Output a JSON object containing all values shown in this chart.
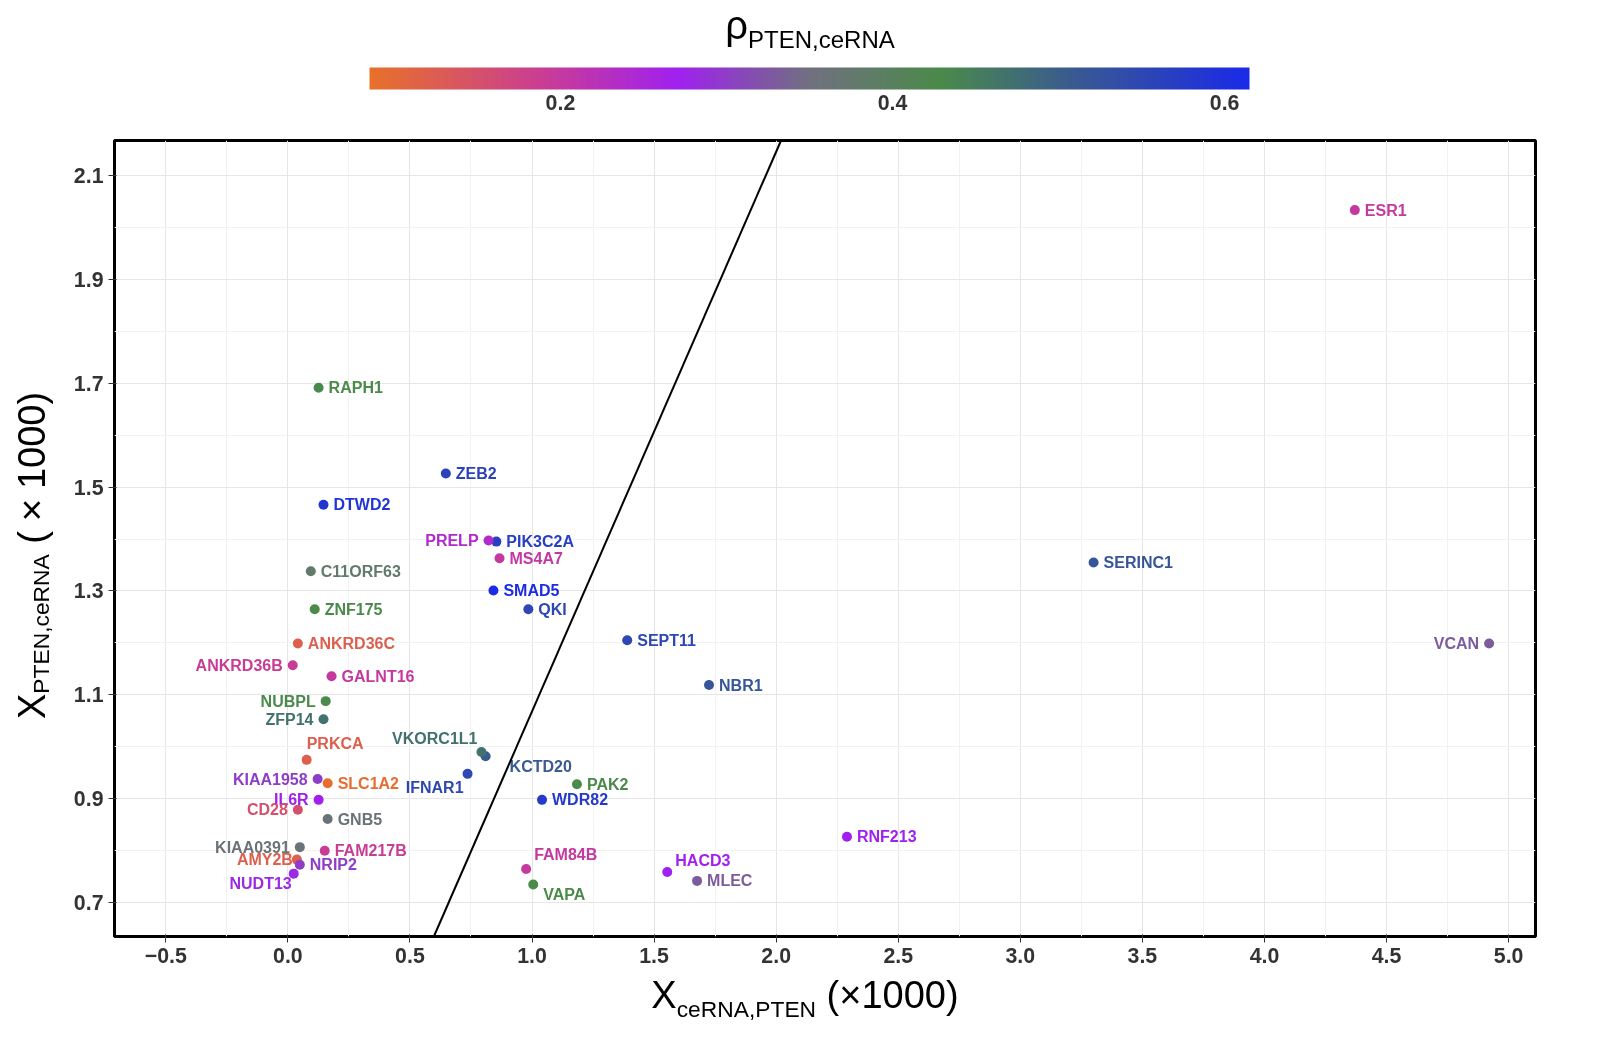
{
  "chart_data": {
    "type": "scatter",
    "xlabel": "X$_{ceRNA,PTEN}$ (×1000)",
    "ylabel": "X$_{PTEN,ceRNA}$ (×1000)",
    "clabel": "ρ$_{PTEN,ceRNA}$",
    "xlim": [
      -0.71,
      5.11
    ],
    "ylim": [
      0.635,
      2.167
    ],
    "xticks": [
      {
        "value": -0.5,
        "label": "−0.5"
      },
      {
        "value": 0,
        "label": "0.0"
      },
      0.5,
      {
        "value": 1,
        "label": "1.0"
      },
      1.5,
      {
        "value": 2,
        "label": "2.0"
      },
      2.5,
      {
        "value": 3,
        "label": "3.0"
      },
      3.5,
      {
        "value": 4,
        "label": "4.0"
      },
      4.5,
      {
        "value": 5,
        "label": "5.0"
      }
    ],
    "yticks": [
      0.7,
      0.9,
      1.1,
      1.3,
      1.5,
      1.7,
      1.9,
      2.1
    ],
    "clim": [
      0.085,
      0.615
    ],
    "cticks": [
      0.2,
      0.4,
      0.6
    ],
    "grid": true,
    "marker": "circle",
    "series": [
      {
        "x": [
          4.37,
          4.92,
          3.3,
          2.29,
          1.725,
          1.39,
          1.554,
          1.676,
          1.184,
          1.041,
          0.976,
          1.005,
          0.985,
          0.842,
          0.867,
          0.854,
          0.822,
          0.647,
          0.81,
          0.793,
          0.736,
          0.146,
          0.126,
          0.094,
          0.11,
          0.041,
          0.02,
          0.179,
          0.155,
          0.146,
          0.077,
          0.122,
          0.163,
          0.126,
          0.041,
          0.163,
          0.049,
          0.151,
          0.037,
          0.049,
          0.024
        ],
        "values": [
          2.033,
          1.199,
          1.355,
          0.827,
          1.119,
          1.205,
          0.759,
          0.742,
          0.928,
          0.898,
          0.765,
          0.735,
          1.265,
          1.301,
          1.363,
          1.395,
          1.397,
          1.526,
          0.982,
          0.99,
          0.948,
          1.466,
          1.691,
          1.338,
          1.265,
          1.199,
          1.157,
          1.136,
          1.088,
          1.053,
          0.975,
          0.938,
          0.93,
          0.898,
          0.879,
          0.861,
          0.807,
          0.8,
          0.783,
          0.773,
          0.756
        ],
        "cvalues": [
          0.2,
          0.33,
          0.52,
          0.27,
          0.52,
          0.55,
          0.27,
          0.33,
          0.43,
          0.58,
          0.2,
          0.43,
          0.55,
          0.61,
          0.2,
          0.57,
          0.24,
          0.56,
          0.51,
          0.47,
          0.55,
          0.59,
          0.43,
          0.38,
          0.43,
          0.12,
          0.19,
          0.2,
          0.43,
          0.47,
          0.12,
          0.3,
          0.09,
          0.27,
          0.15,
          0.36,
          0.36,
          0.19,
          0.12,
          0.3,
          0.28
        ],
        "colors": [
          "#c439a0",
          "#7c5c9c",
          "#375599",
          "#a020ef",
          "#375599",
          "#2e47b2",
          "#a020ef",
          "#7c5c9c",
          "#4a8a4a",
          "#253acb",
          "#c439a0",
          "#4a8a4a",
          "#2e47b2",
          "#1b2ce4",
          "#c439a0",
          "#283ec3",
          "#af2bce",
          "#2b43ba",
          "#3a5a91",
          "#42726e",
          "#2e47b2",
          "#2235d3",
          "#4a8a4a",
          "#627a6c",
          "#4a8a4a",
          "#dd5f4e",
          "#c83c95",
          "#c439a0",
          "#4a8a4a",
          "#42726e",
          "#dd5f4e",
          "#8e3ec6",
          "#e66e2f",
          "#a020ef",
          "#d4506c",
          "#6b7379",
          "#6b7379",
          "#c83c95",
          "#dd5f4e",
          "#8e3ec6",
          "#9a2ae3"
        ]
      },
      {
        "type": "line",
        "color": "#000000",
        "marker": "none",
        "x": [
          0.598,
          2.02
        ],
        "values": [
          0.635,
          2.167
        ]
      }
    ],
    "annotations": [
      {
        "text": "ESR1",
        "x": 4.37,
        "y": 2.033
      },
      {
        "text": "VCAN",
        "x": 4.92,
        "y": 1.199
      },
      {
        "text": "SERINC1",
        "x": 3.3,
        "y": 1.355
      },
      {
        "text": "RNF213",
        "x": 2.29,
        "y": 0.827
      },
      {
        "text": "NBR1",
        "x": 1.725,
        "y": 1.119
      },
      {
        "text": "SEPT11",
        "x": 1.39,
        "y": 1.205
      },
      {
        "text": "HACD3",
        "x": 1.554,
        "y": 0.759
      },
      {
        "text": "MLEC",
        "x": 1.676,
        "y": 0.742
      },
      {
        "text": "PAK2",
        "x": 1.184,
        "y": 0.928
      },
      {
        "text": "WDR82",
        "x": 1.041,
        "y": 0.898
      },
      {
        "text": "FAM84B",
        "x": 0.976,
        "y": 0.765
      },
      {
        "text": "VAPA",
        "x": 1.005,
        "y": 0.735
      },
      {
        "text": "QKI",
        "x": 0.985,
        "y": 1.265
      },
      {
        "text": "SMAD5",
        "x": 0.842,
        "y": 1.301
      },
      {
        "text": "MS4A7",
        "x": 0.867,
        "y": 1.363
      },
      {
        "text": "PIK3C2A",
        "x": 0.854,
        "y": 1.395
      },
      {
        "text": "PRELP",
        "x": 0.822,
        "y": 1.397
      },
      {
        "text": "ZEB2",
        "x": 0.647,
        "y": 1.526
      },
      {
        "text": "KCTD20",
        "x": 0.81,
        "y": 0.982
      },
      {
        "text": "VKORC1L1",
        "x": 0.793,
        "y": 0.99
      },
      {
        "text": "IFNAR1",
        "x": 0.736,
        "y": 0.948
      },
      {
        "text": "DTWD2",
        "x": 0.146,
        "y": 1.466
      },
      {
        "text": "RAPH1",
        "x": 0.126,
        "y": 1.691
      },
      {
        "text": "C11ORF63",
        "x": 0.094,
        "y": 1.338
      },
      {
        "text": "ZNF175",
        "x": 0.11,
        "y": 1.265
      },
      {
        "text": "ANKRD36C",
        "x": 0.041,
        "y": 1.199
      },
      {
        "text": "ANKRD36B",
        "x": 0.02,
        "y": 1.157
      },
      {
        "text": "GALNT16",
        "x": 0.179,
        "y": 1.136
      },
      {
        "text": "NUBPL",
        "x": 0.155,
        "y": 1.088
      },
      {
        "text": "ZFP14",
        "x": 0.146,
        "y": 1.053
      },
      {
        "text": "PRKCA",
        "x": 0.077,
        "y": 0.975
      },
      {
        "text": "KIAA1958",
        "x": 0.122,
        "y": 0.938
      },
      {
        "text": "SLC1A2",
        "x": 0.163,
        "y": 0.93
      },
      {
        "text": "IL6R",
        "x": 0.126,
        "y": 0.898
      },
      {
        "text": "CD28",
        "x": 0.041,
        "y": 0.879
      },
      {
        "text": "GNB5",
        "x": 0.163,
        "y": 0.861
      },
      {
        "text": "KIAA0391",
        "x": 0.049,
        "y": 0.807
      },
      {
        "text": "FAM217B",
        "x": 0.151,
        "y": 0.8
      },
      {
        "text": "AMY2B",
        "x": 0.037,
        "y": 0.783
      },
      {
        "text": "NRIP2",
        "x": 0.049,
        "y": 0.773
      },
      {
        "text": "NUDT13",
        "x": 0.024,
        "y": 0.756
      }
    ]
  }
}
